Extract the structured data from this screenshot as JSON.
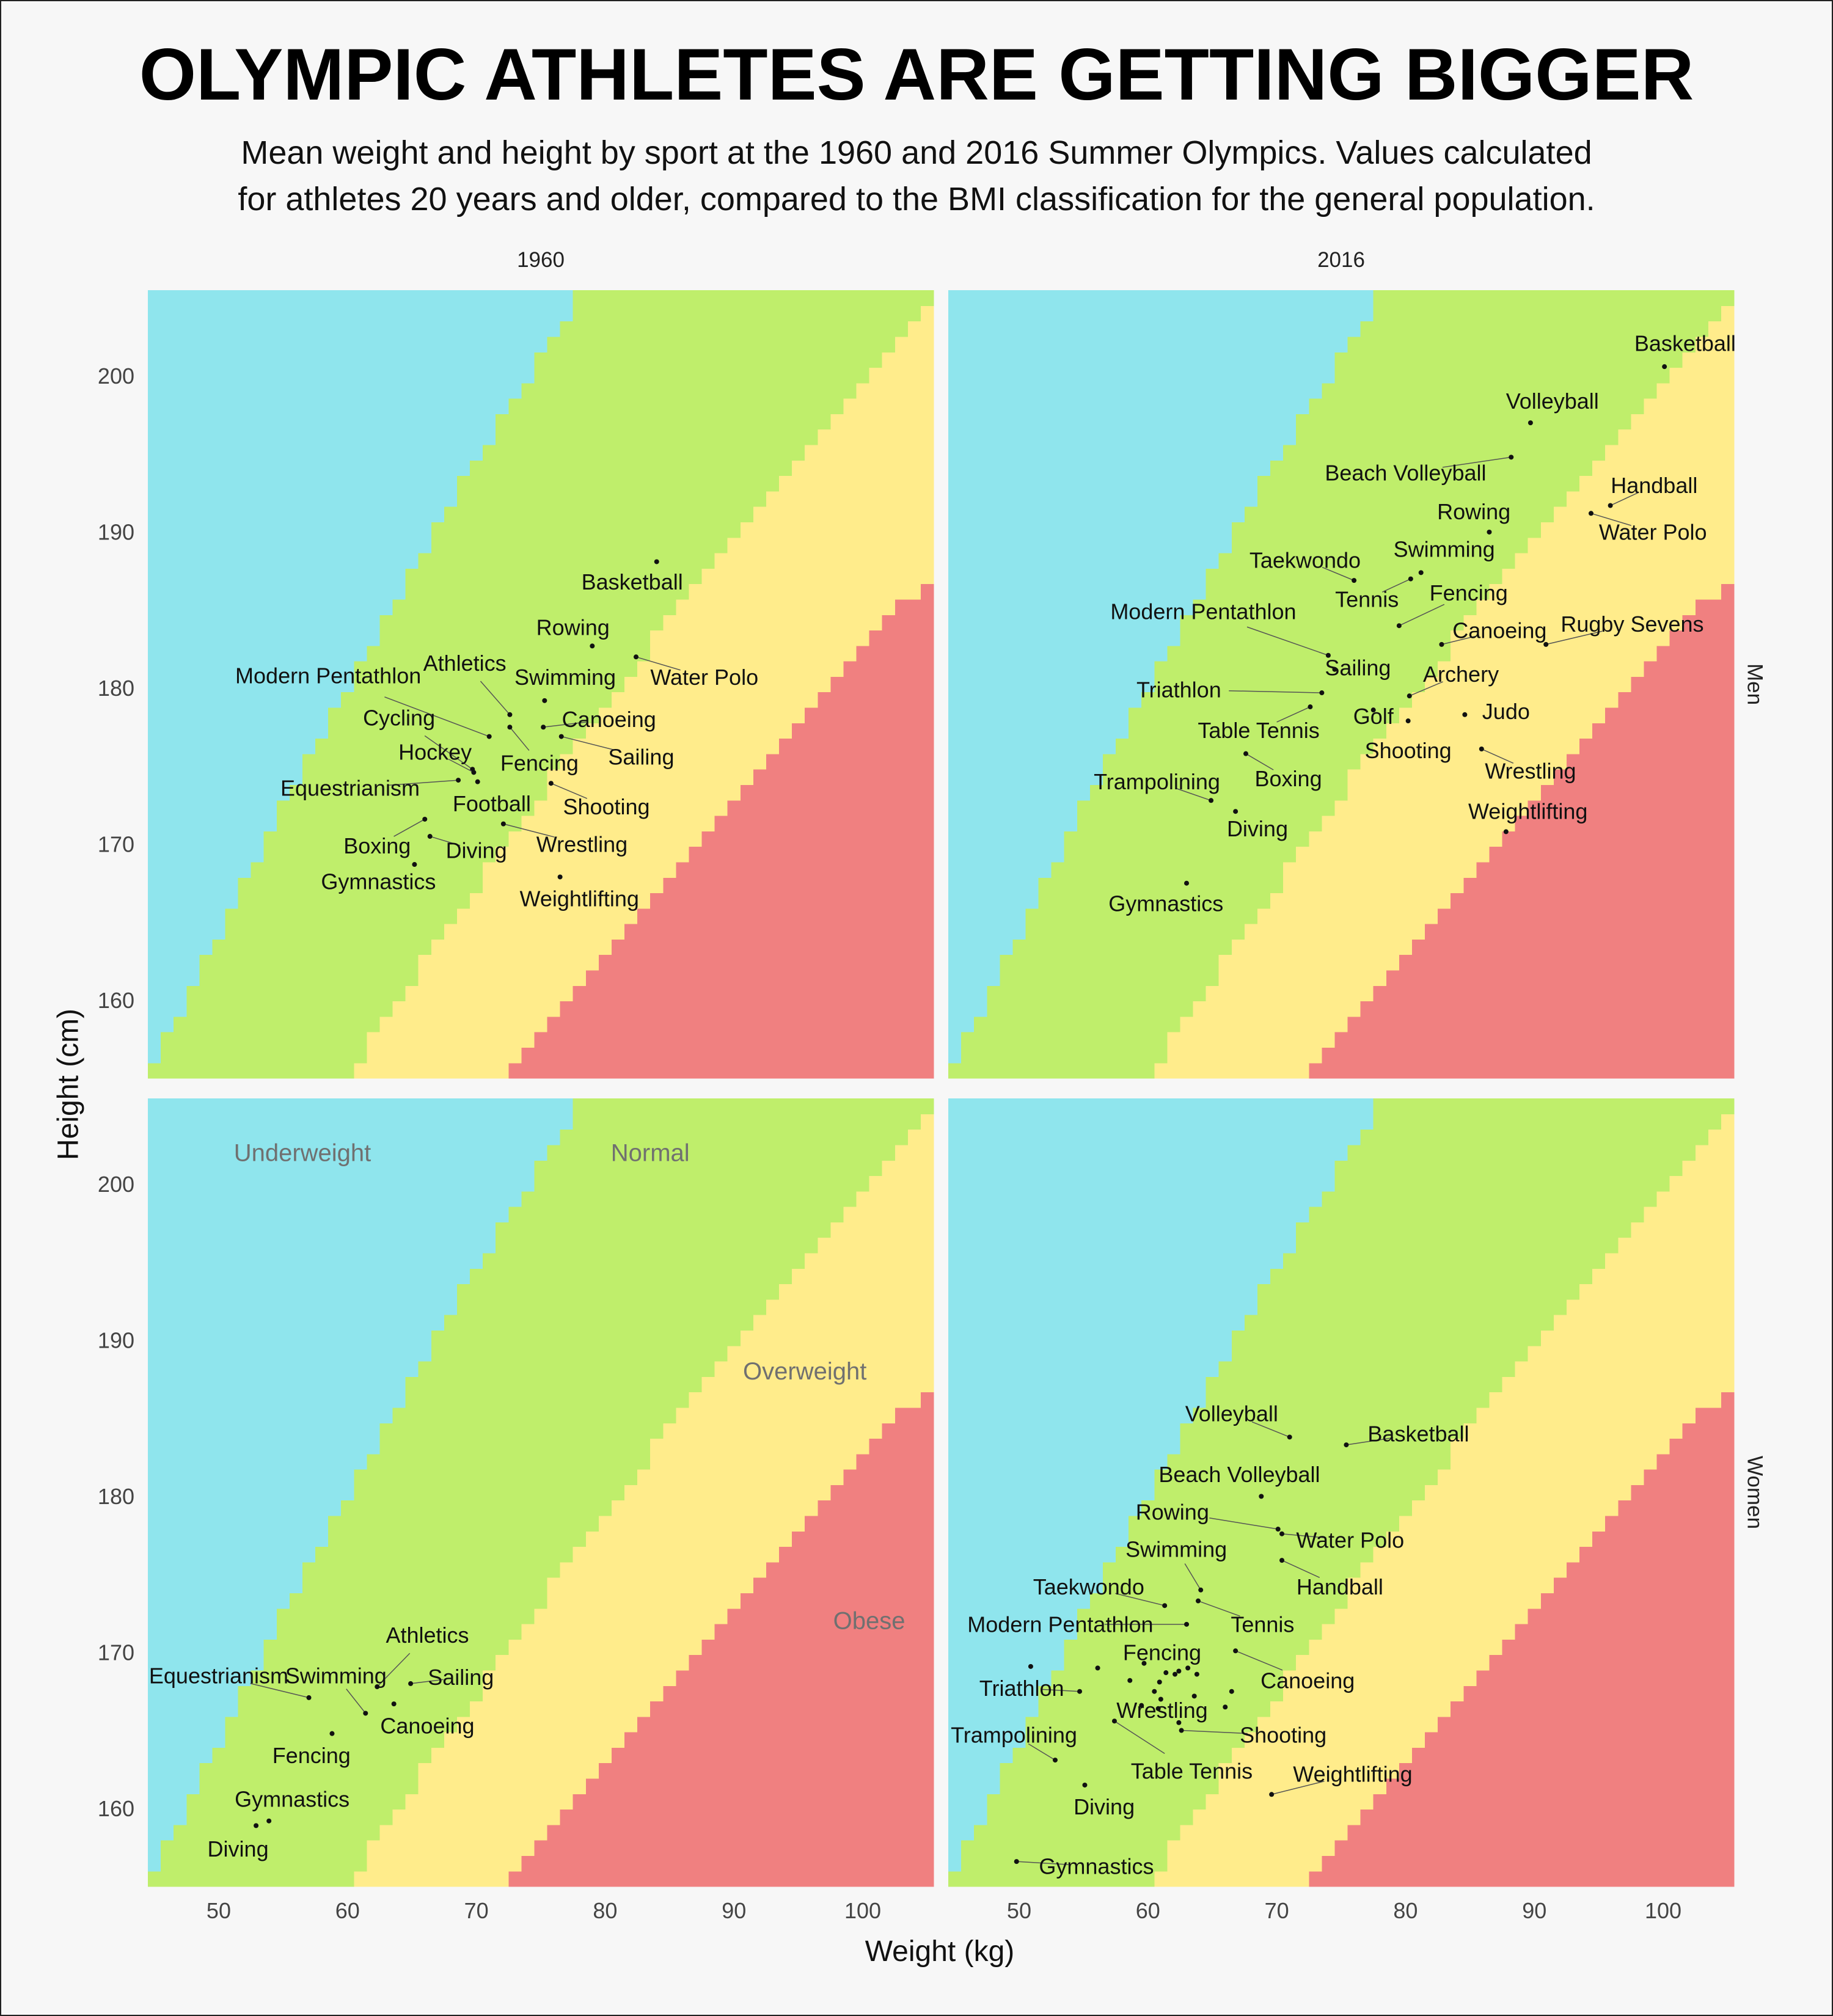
{
  "title": "OLYMPIC ATHLETES ARE GETTING BIGGER",
  "subtitle_lines": [
    "Mean weight and height by sport at the 1960 and 2016 Summer Olympics. Values calculated",
    "for athletes 20 years and older, compared to the BMI classification for the general population."
  ],
  "chart_data": {
    "type": "scatter",
    "xlabel": "Weight (kg)",
    "ylabel": "Height (cm)",
    "xlim": [
      44.5,
      105.5
    ],
    "ylim": [
      155,
      205.5
    ],
    "x_ticks": [
      50,
      60,
      70,
      80,
      90,
      100
    ],
    "y_ticks": [
      160,
      170,
      180,
      190,
      200
    ],
    "columns": [
      "1960",
      "2016"
    ],
    "rows": [
      "Men",
      "Women"
    ],
    "bmi_zones": [
      {
        "name": "Underweight",
        "color": "#8fe5ed",
        "bmi_max": 18.5
      },
      {
        "name": "Normal",
        "color": "#bfee6b",
        "bmi_max": 25
      },
      {
        "name": "Overweight",
        "color": "#ffec8b",
        "bmi_max": 30
      },
      {
        "name": "Obese",
        "color": "#f08080",
        "bmi_max": null
      }
    ],
    "zone_labels": [
      {
        "text": "Underweight",
        "x": 56.5,
        "y": 202
      },
      {
        "text": "Normal",
        "x": 83.5,
        "y": 202
      },
      {
        "text": "Overweight",
        "x": 95.5,
        "y": 188
      },
      {
        "text": "Obese",
        "x": 100.5,
        "y": 172
      }
    ],
    "panels": [
      {
        "year": "1960",
        "group": "Men",
        "zone_labels": false,
        "points": [
          {
            "sport": "Basketball",
            "x": 84.0,
            "y": 188.1,
            "lx": 82.1,
            "ly": 186.8
          },
          {
            "sport": "Rowing",
            "x": 79.0,
            "y": 182.7,
            "lx": 77.5,
            "ly": 183.9
          },
          {
            "sport": "Water Polo",
            "x": 82.4,
            "y": 182.0,
            "lx": 87.7,
            "ly": 180.7
          },
          {
            "sport": "Athletics",
            "x": 72.6,
            "y": 178.3,
            "lx": 69.1,
            "ly": 181.6
          },
          {
            "sport": "Swimming",
            "x": 75.3,
            "y": 179.2,
            "lx": 76.9,
            "ly": 180.7
          },
          {
            "sport": "Modern Pentathlon",
            "x": 71.0,
            "y": 176.9,
            "lx": 58.5,
            "ly": 180.8
          },
          {
            "sport": "Canoeing",
            "x": 75.2,
            "y": 177.5,
            "lx": 80.3,
            "ly": 178.0
          },
          {
            "sport": "Cycling",
            "x": 69.7,
            "y": 174.8,
            "lx": 64.0,
            "ly": 178.1
          },
          {
            "sport": "Sailing",
            "x": 76.6,
            "y": 176.9,
            "lx": 82.8,
            "ly": 175.6
          },
          {
            "sport": "Hockey",
            "x": 69.8,
            "y": 174.6,
            "lx": 66.8,
            "ly": 175.9
          },
          {
            "sport": "Fencing",
            "x": 72.6,
            "y": 177.5,
            "lx": 74.9,
            "ly": 175.2
          },
          {
            "sport": "Equestrianism",
            "x": 68.6,
            "y": 174.1,
            "lx": 60.2,
            "ly": 173.6
          },
          {
            "sport": "Football",
            "x": 70.1,
            "y": 174.0,
            "lx": 71.2,
            "ly": 172.6
          },
          {
            "sport": "Shooting",
            "x": 75.8,
            "y": 173.9,
            "lx": 80.1,
            "ly": 172.4
          },
          {
            "sport": "Boxing",
            "x": 66.0,
            "y": 171.6,
            "lx": 62.3,
            "ly": 169.9
          },
          {
            "sport": "Diving",
            "x": 66.4,
            "y": 170.5,
            "lx": 70.0,
            "ly": 169.6
          },
          {
            "sport": "Wrestling",
            "x": 72.1,
            "y": 171.3,
            "lx": 78.2,
            "ly": 170.0
          },
          {
            "sport": "Gymnastics",
            "x": 65.2,
            "y": 168.7,
            "lx": 62.4,
            "ly": 167.6
          },
          {
            "sport": "Weightlifting",
            "x": 76.5,
            "y": 167.9,
            "lx": 78.0,
            "ly": 166.5
          }
        ]
      },
      {
        "year": "2016",
        "group": "Men",
        "zone_labels": false,
        "points": [
          {
            "sport": "Basketball",
            "x": 100.1,
            "y": 200.6,
            "lx": 101.7,
            "ly": 202.1
          },
          {
            "sport": "Volleyball",
            "x": 89.7,
            "y": 197.0,
            "lx": 91.4,
            "ly": 198.4
          },
          {
            "sport": "Beach Volleyball",
            "x": 88.2,
            "y": 194.8,
            "lx": 80.0,
            "ly": 193.8
          },
          {
            "sport": "Handball",
            "x": 95.9,
            "y": 191.7,
            "lx": 99.3,
            "ly": 193.0
          },
          {
            "sport": "Water Polo",
            "x": 94.4,
            "y": 191.2,
            "lx": 99.2,
            "ly": 190.0
          },
          {
            "sport": "Rowing",
            "x": 86.5,
            "y": 190.0,
            "lx": 85.3,
            "ly": 191.3
          },
          {
            "sport": "Taekwondo",
            "x": 76.0,
            "y": 186.9,
            "lx": 72.2,
            "ly": 188.2
          },
          {
            "sport": "Swimming",
            "x": 81.2,
            "y": 187.4,
            "lx": 83.0,
            "ly": 188.9
          },
          {
            "sport": "Tennis",
            "x": 80.4,
            "y": 187.0,
            "lx": 77.0,
            "ly": 185.7
          },
          {
            "sport": "Fencing",
            "x": 79.5,
            "y": 184.0,
            "lx": 84.9,
            "ly": 186.1
          },
          {
            "sport": "Modern Pentathlon",
            "x": 74.0,
            "y": 182.1,
            "lx": 64.3,
            "ly": 184.9
          },
          {
            "sport": "Canoeing",
            "x": 82.8,
            "y": 182.8,
            "lx": 87.3,
            "ly": 183.7
          },
          {
            "sport": "Rugby Sevens",
            "x": 90.9,
            "y": 182.8,
            "lx": 97.6,
            "ly": 184.1
          },
          {
            "sport": "Sailing",
            "x": 74.5,
            "y": 181.2,
            "lx": 76.3,
            "ly": 181.3
          },
          {
            "sport": "Archery",
            "x": 80.3,
            "y": 179.5,
            "lx": 84.3,
            "ly": 180.9
          },
          {
            "sport": "Triathlon",
            "x": 73.5,
            "y": 179.7,
            "lx": 62.4,
            "ly": 179.9
          },
          {
            "sport": "Golf",
            "x": 77.5,
            "y": 178.6,
            "lx": 77.5,
            "ly": 178.2
          },
          {
            "sport": "Judo",
            "x": 84.6,
            "y": 178.3,
            "lx": 87.8,
            "ly": 178.5
          },
          {
            "sport": "Table Tennis",
            "x": 72.6,
            "y": 178.8,
            "lx": 68.6,
            "ly": 177.3
          },
          {
            "sport": "Shooting",
            "x": 80.2,
            "y": 177.9,
            "lx": 80.2,
            "ly": 176.0
          },
          {
            "sport": "Trampolining",
            "x": 64.9,
            "y": 172.8,
            "lx": 60.7,
            "ly": 174.0
          },
          {
            "sport": "Boxing",
            "x": 67.6,
            "y": 175.8,
            "lx": 70.9,
            "ly": 174.2
          },
          {
            "sport": "Wrestling",
            "x": 85.9,
            "y": 176.1,
            "lx": 89.7,
            "ly": 174.7
          },
          {
            "sport": "Weightlifting",
            "x": 87.8,
            "y": 170.8,
            "lx": 89.5,
            "ly": 172.1
          },
          {
            "sport": "Diving",
            "x": 66.8,
            "y": 172.1,
            "lx": 68.5,
            "ly": 171.0
          },
          {
            "sport": "Gymnastics",
            "x": 63.0,
            "y": 167.5,
            "lx": 61.4,
            "ly": 166.2
          }
        ]
      },
      {
        "year": "1960",
        "group": "Women",
        "zone_labels": true,
        "points": [
          {
            "sport": "Athletics",
            "x": 62.3,
            "y": 167.8,
            "lx": 66.2,
            "ly": 171.1
          },
          {
            "sport": "Equestrianism",
            "x": 57.0,
            "y": 167.1,
            "lx": 50.0,
            "ly": 168.5
          },
          {
            "sport": "Swimming",
            "x": 61.4,
            "y": 166.1,
            "lx": 59.1,
            "ly": 168.5
          },
          {
            "sport": "Sailing",
            "x": 64.9,
            "y": 168.0,
            "lx": 68.8,
            "ly": 168.4
          },
          {
            "sport": "Canoeing",
            "x": 63.6,
            "y": 166.7,
            "lx": 66.2,
            "ly": 165.3
          },
          {
            "sport": "Fencing",
            "x": 58.8,
            "y": 164.8,
            "lx": 57.2,
            "ly": 163.4
          },
          {
            "sport": "Gymnastics",
            "x": 53.9,
            "y": 159.2,
            "lx": 55.7,
            "ly": 160.6
          },
          {
            "sport": "Diving",
            "x": 52.9,
            "y": 158.9,
            "lx": 51.5,
            "ly": 157.4
          }
        ]
      },
      {
        "year": "2016",
        "group": "Women",
        "zone_labels": false,
        "points": [
          {
            "sport": "Volleyball",
            "x": 71.0,
            "y": 183.8,
            "lx": 66.5,
            "ly": 185.3
          },
          {
            "sport": "Basketball",
            "x": 75.4,
            "y": 183.3,
            "lx": 81.0,
            "ly": 184.0
          },
          {
            "sport": "Beach Volleyball",
            "x": 68.8,
            "y": 180.0,
            "lx": 67.1,
            "ly": 181.4
          },
          {
            "sport": "Rowing",
            "x": 70.1,
            "y": 177.9,
            "lx": 61.9,
            "ly": 179.0
          },
          {
            "sport": "Water Polo",
            "x": 70.4,
            "y": 177.6,
            "lx": 75.7,
            "ly": 177.2
          },
          {
            "sport": "Swimming",
            "x": 64.1,
            "y": 174.0,
            "lx": 62.2,
            "ly": 176.6
          },
          {
            "sport": "Handball",
            "x": 70.4,
            "y": 175.9,
            "lx": 74.9,
            "ly": 174.2
          },
          {
            "sport": "Taekwondo",
            "x": 61.3,
            "y": 173.0,
            "lx": 55.4,
            "ly": 174.2
          },
          {
            "sport": "Tennis",
            "x": 63.9,
            "y": 173.3,
            "lx": 68.9,
            "ly": 171.8
          },
          {
            "sport": "Modern Pentathlon",
            "x": 63.0,
            "y": 171.8,
            "lx": 53.2,
            "ly": 171.8
          },
          {
            "sport": "Fencing",
            "x": 62.4,
            "y": 168.8,
            "lx": 61.1,
            "ly": 170.0
          },
          {
            "sport": "Canoeing",
            "x": 66.8,
            "y": 170.1,
            "lx": 72.4,
            "ly": 168.2
          },
          {
            "sport": "Triathlon",
            "x": 54.7,
            "y": 167.5,
            "lx": 50.2,
            "ly": 167.7
          },
          {
            "sport": "Shooting",
            "x": 62.6,
            "y": 165.0,
            "lx": 70.5,
            "ly": 164.7
          },
          {
            "sport": "Wrestling",
            "x": 62.4,
            "y": 165.5,
            "lx": 61.1,
            "ly": 166.3
          },
          {
            "sport": "Trampolining",
            "x": 52.8,
            "y": 163.1,
            "lx": 49.6,
            "ly": 164.7
          },
          {
            "sport": "Table Tennis",
            "x": 57.4,
            "y": 165.6,
            "lx": 63.4,
            "ly": 162.4
          },
          {
            "sport": "Weightlifting",
            "x": 69.6,
            "y": 160.9,
            "lx": 75.9,
            "ly": 162.2
          },
          {
            "sport": "Diving",
            "x": 55.1,
            "y": 161.5,
            "lx": 56.6,
            "ly": 160.1
          },
          {
            "sport": "Gymnastics",
            "x": 49.8,
            "y": 156.6,
            "lx": 56.0,
            "ly": 156.3
          }
        ],
        "extra_points": [
          [
            50.9,
            169.1
          ],
          [
            56.1,
            169.0
          ],
          [
            58.6,
            168.2
          ],
          [
            59.7,
            169.3
          ],
          [
            60.5,
            167.5
          ],
          [
            60.9,
            168.1
          ],
          [
            61.4,
            168.7
          ],
          [
            62.1,
            168.6
          ],
          [
            63.1,
            169.0
          ],
          [
            63.8,
            168.6
          ],
          [
            60.8,
            166.4
          ],
          [
            63.6,
            167.2
          ],
          [
            66.5,
            167.5
          ],
          [
            66.0,
            166.5
          ],
          [
            61.0,
            167.0
          ],
          [
            59.5,
            166.6
          ]
        ]
      }
    ]
  }
}
